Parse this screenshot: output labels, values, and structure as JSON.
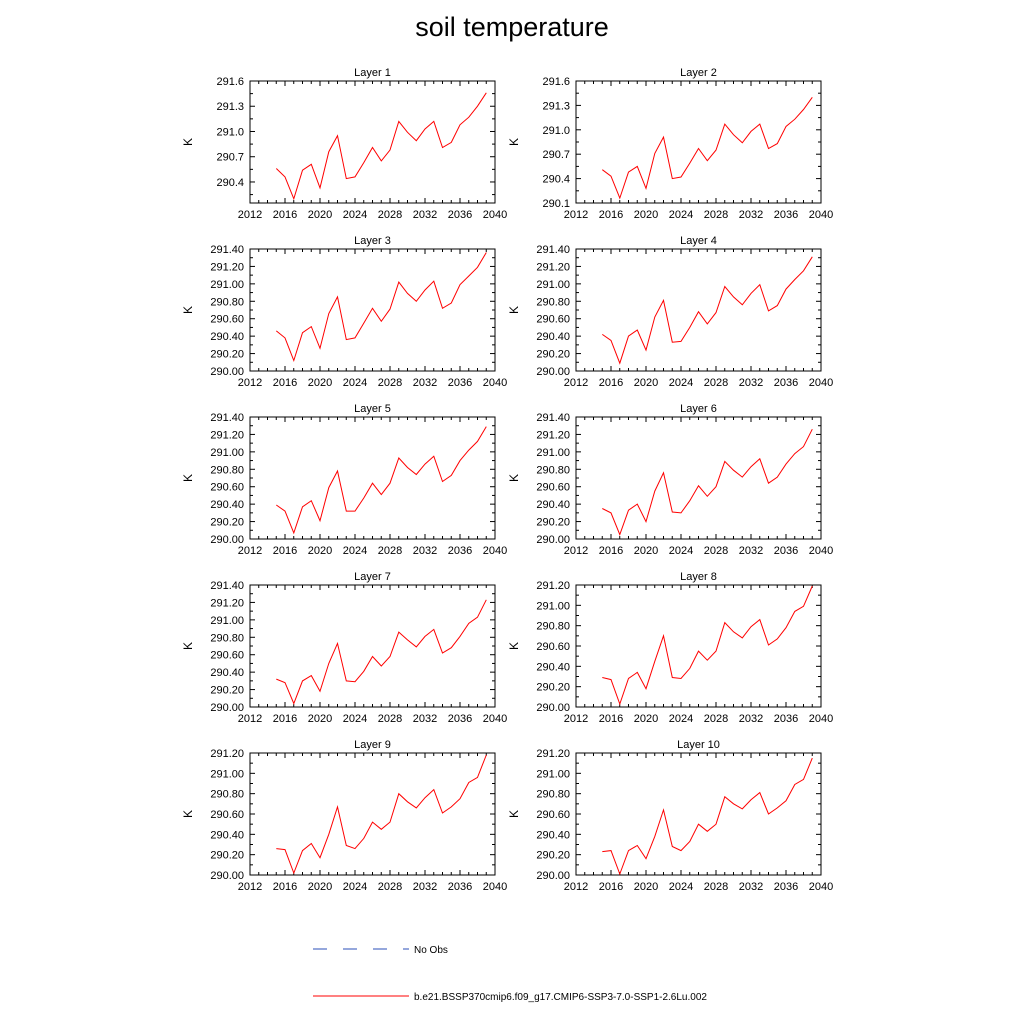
{
  "title": "soil temperature",
  "colors": {
    "model": "#ff0000",
    "obs": "#2b4fb8",
    "axis": "#000000"
  },
  "legend": {
    "obs_label": "No Obs",
    "model_label": "b.e21.BSSP370cmip6.f09_g17.CMIP6-SSP3-7.0-SSP1-2.6Lu.002"
  },
  "chart_data": [
    {
      "type": "line",
      "title": "Layer 1",
      "ylabel": "K",
      "xlim": [
        2012,
        2040
      ],
      "ylim": [
        290.15,
        291.6
      ],
      "xticks": [
        "2012",
        "2016",
        "2020",
        "2024",
        "2028",
        "2032",
        "2036",
        "2040"
      ],
      "yticks": [
        "290.4",
        "290.7",
        "291.0",
        "291.3",
        "291.6"
      ],
      "x": [
        2015,
        2016,
        2017,
        2018,
        2019,
        2020,
        2021,
        2022,
        2023,
        2024,
        2025,
        2026,
        2027,
        2028,
        2029,
        2030,
        2031,
        2032,
        2033,
        2034,
        2035,
        2036,
        2037,
        2038,
        2039
      ],
      "series": [
        {
          "name": "b.e21.BSSP370cmip6.f09_g17.CMIP6-SSP3-7.0-SSP1-2.6Lu.002",
          "values": [
            290.56,
            290.46,
            290.2,
            290.54,
            290.61,
            290.33,
            290.76,
            290.95,
            290.44,
            290.46,
            290.63,
            290.81,
            290.65,
            290.78,
            291.12,
            290.99,
            290.89,
            291.03,
            291.12,
            290.81,
            290.87,
            291.08,
            291.17,
            291.3,
            291.46
          ]
        }
      ]
    },
    {
      "type": "line",
      "title": "Layer 2",
      "ylabel": "K",
      "xlim": [
        2012,
        2040
      ],
      "ylim": [
        290.1,
        291.6
      ],
      "xticks": [
        "2012",
        "2016",
        "2020",
        "2024",
        "2028",
        "2032",
        "2036",
        "2040"
      ],
      "yticks": [
        "290.1",
        "290.4",
        "290.7",
        "291.0",
        "291.3",
        "291.6"
      ],
      "x": [
        2015,
        2016,
        2017,
        2018,
        2019,
        2020,
        2021,
        2022,
        2023,
        2024,
        2025,
        2026,
        2027,
        2028,
        2029,
        2030,
        2031,
        2032,
        2033,
        2034,
        2035,
        2036,
        2037,
        2038,
        2039
      ],
      "series": [
        {
          "name": "b.e21.BSSP370cmip6.f09_g17.CMIP6-SSP3-7.0-SSP1-2.6Lu.002",
          "values": [
            290.51,
            290.43,
            290.16,
            290.48,
            290.55,
            290.28,
            290.71,
            290.91,
            290.4,
            290.42,
            290.59,
            290.77,
            290.62,
            290.75,
            291.07,
            290.94,
            290.84,
            290.98,
            291.07,
            290.77,
            290.83,
            291.04,
            291.13,
            291.25,
            291.4
          ]
        }
      ]
    },
    {
      "type": "line",
      "title": "Layer 3",
      "ylabel": "K",
      "xlim": [
        2012,
        2040
      ],
      "ylim": [
        290.0,
        291.4
      ],
      "xticks": [
        "2012",
        "2016",
        "2020",
        "2024",
        "2028",
        "2032",
        "2036",
        "2040"
      ],
      "yticks": [
        "290.00",
        "290.20",
        "290.40",
        "290.60",
        "290.80",
        "291.00",
        "291.20",
        "291.40"
      ],
      "x": [
        2015,
        2016,
        2017,
        2018,
        2019,
        2020,
        2021,
        2022,
        2023,
        2024,
        2025,
        2026,
        2027,
        2028,
        2029,
        2030,
        2031,
        2032,
        2033,
        2034,
        2035,
        2036,
        2037,
        2038,
        2039
      ],
      "series": [
        {
          "name": "b.e21.BSSP370cmip6.f09_g17.CMIP6-SSP3-7.0-SSP1-2.6Lu.002",
          "values": [
            290.46,
            290.38,
            290.12,
            290.44,
            290.51,
            290.26,
            290.66,
            290.85,
            290.36,
            290.38,
            290.55,
            290.72,
            290.57,
            290.71,
            291.02,
            290.89,
            290.8,
            290.93,
            291.03,
            290.72,
            290.78,
            290.99,
            291.09,
            291.19,
            291.36
          ]
        }
      ]
    },
    {
      "type": "line",
      "title": "Layer 4",
      "ylabel": "K",
      "xlim": [
        2012,
        2040
      ],
      "ylim": [
        290.0,
        291.4
      ],
      "xticks": [
        "2012",
        "2016",
        "2020",
        "2024",
        "2028",
        "2032",
        "2036",
        "2040"
      ],
      "yticks": [
        "290.00",
        "290.20",
        "290.40",
        "290.60",
        "290.80",
        "291.00",
        "291.20",
        "291.40"
      ],
      "x": [
        2015,
        2016,
        2017,
        2018,
        2019,
        2020,
        2021,
        2022,
        2023,
        2024,
        2025,
        2026,
        2027,
        2028,
        2029,
        2030,
        2031,
        2032,
        2033,
        2034,
        2035,
        2036,
        2037,
        2038,
        2039
      ],
      "series": [
        {
          "name": "b.e21.BSSP370cmip6.f09_g17.CMIP6-SSP3-7.0-SSP1-2.6Lu.002",
          "values": [
            290.42,
            290.35,
            290.09,
            290.4,
            290.47,
            290.24,
            290.62,
            290.81,
            290.33,
            290.34,
            290.5,
            290.68,
            290.54,
            290.67,
            290.97,
            290.85,
            290.76,
            290.89,
            290.99,
            290.69,
            290.75,
            290.94,
            291.05,
            291.15,
            291.31
          ]
        }
      ]
    },
    {
      "type": "line",
      "title": "Layer 5",
      "ylabel": "K",
      "xlim": [
        2012,
        2040
      ],
      "ylim": [
        290.0,
        291.4
      ],
      "xticks": [
        "2012",
        "2016",
        "2020",
        "2024",
        "2028",
        "2032",
        "2036",
        "2040"
      ],
      "yticks": [
        "290.00",
        "290.20",
        "290.40",
        "290.60",
        "290.80",
        "291.00",
        "291.20",
        "291.40"
      ],
      "x": [
        2015,
        2016,
        2017,
        2018,
        2019,
        2020,
        2021,
        2022,
        2023,
        2024,
        2025,
        2026,
        2027,
        2028,
        2029,
        2030,
        2031,
        2032,
        2033,
        2034,
        2035,
        2036,
        2037,
        2038,
        2039
      ],
      "series": [
        {
          "name": "b.e21.BSSP370cmip6.f09_g17.CMIP6-SSP3-7.0-SSP1-2.6Lu.002",
          "values": [
            290.39,
            290.32,
            290.07,
            290.37,
            290.44,
            290.21,
            290.59,
            290.78,
            290.32,
            290.32,
            290.47,
            290.64,
            290.51,
            290.64,
            290.93,
            290.82,
            290.74,
            290.86,
            290.95,
            290.66,
            290.73,
            290.9,
            291.02,
            291.12,
            291.29
          ]
        }
      ]
    },
    {
      "type": "line",
      "title": "Layer 6",
      "ylabel": "K",
      "xlim": [
        2012,
        2040
      ],
      "ylim": [
        290.0,
        291.4
      ],
      "xticks": [
        "2012",
        "2016",
        "2020",
        "2024",
        "2028",
        "2032",
        "2036",
        "2040"
      ],
      "yticks": [
        "290.00",
        "290.20",
        "290.40",
        "290.60",
        "290.80",
        "291.00",
        "291.20",
        "291.40"
      ],
      "x": [
        2015,
        2016,
        2017,
        2018,
        2019,
        2020,
        2021,
        2022,
        2023,
        2024,
        2025,
        2026,
        2027,
        2028,
        2029,
        2030,
        2031,
        2032,
        2033,
        2034,
        2035,
        2036,
        2037,
        2038,
        2039
      ],
      "series": [
        {
          "name": "b.e21.BSSP370cmip6.f09_g17.CMIP6-SSP3-7.0-SSP1-2.6Lu.002",
          "values": [
            290.35,
            290.3,
            290.05,
            290.33,
            290.4,
            290.2,
            290.55,
            290.76,
            290.31,
            290.3,
            290.44,
            290.61,
            290.49,
            290.6,
            290.89,
            290.79,
            290.71,
            290.83,
            290.92,
            290.64,
            290.71,
            290.86,
            290.98,
            291.06,
            291.26
          ]
        }
      ]
    },
    {
      "type": "line",
      "title": "Layer 7",
      "ylabel": "K",
      "xlim": [
        2012,
        2040
      ],
      "ylim": [
        290.0,
        291.4
      ],
      "xticks": [
        "2012",
        "2016",
        "2020",
        "2024",
        "2028",
        "2032",
        "2036",
        "2040"
      ],
      "yticks": [
        "290.00",
        "290.20",
        "290.40",
        "290.60",
        "290.80",
        "291.00",
        "291.20",
        "291.40"
      ],
      "x": [
        2015,
        2016,
        2017,
        2018,
        2019,
        2020,
        2021,
        2022,
        2023,
        2024,
        2025,
        2026,
        2027,
        2028,
        2029,
        2030,
        2031,
        2032,
        2033,
        2034,
        2035,
        2036,
        2037,
        2038,
        2039
      ],
      "series": [
        {
          "name": "b.e21.BSSP370cmip6.f09_g17.CMIP6-SSP3-7.0-SSP1-2.6Lu.002",
          "values": [
            290.32,
            290.28,
            290.04,
            290.3,
            290.36,
            290.18,
            290.5,
            290.73,
            290.3,
            290.29,
            290.41,
            290.58,
            290.47,
            290.58,
            290.86,
            290.77,
            290.69,
            290.81,
            290.89,
            290.62,
            290.68,
            290.81,
            290.96,
            291.03,
            291.23
          ]
        }
      ]
    },
    {
      "type": "line",
      "title": "Layer 8",
      "ylabel": "K",
      "xlim": [
        2012,
        2040
      ],
      "ylim": [
        290.0,
        291.2
      ],
      "xticks": [
        "2012",
        "2016",
        "2020",
        "2024",
        "2028",
        "2032",
        "2036",
        "2040"
      ],
      "yticks": [
        "290.00",
        "290.20",
        "290.40",
        "290.60",
        "290.80",
        "291.00",
        "291.20"
      ],
      "x": [
        2015,
        2016,
        2017,
        2018,
        2019,
        2020,
        2021,
        2022,
        2023,
        2024,
        2025,
        2026,
        2027,
        2028,
        2029,
        2030,
        2031,
        2032,
        2033,
        2034,
        2035,
        2036,
        2037,
        2038,
        2039
      ],
      "series": [
        {
          "name": "b.e21.BSSP370cmip6.f09_g17.CMIP6-SSP3-7.0-SSP1-2.6Lu.002",
          "values": [
            290.29,
            290.27,
            290.03,
            290.28,
            290.34,
            290.18,
            290.45,
            290.7,
            290.29,
            290.28,
            290.38,
            290.55,
            290.46,
            290.55,
            290.83,
            290.74,
            290.68,
            290.79,
            290.86,
            290.61,
            290.67,
            290.78,
            290.94,
            290.99,
            291.19
          ]
        }
      ]
    },
    {
      "type": "line",
      "title": "Layer 9",
      "ylabel": "K",
      "xlim": [
        2012,
        2040
      ],
      "ylim": [
        290.0,
        291.2
      ],
      "xticks": [
        "2012",
        "2016",
        "2020",
        "2024",
        "2028",
        "2032",
        "2036",
        "2040"
      ],
      "yticks": [
        "290.00",
        "290.20",
        "290.40",
        "290.60",
        "290.80",
        "291.00",
        "291.20"
      ],
      "x": [
        2015,
        2016,
        2017,
        2018,
        2019,
        2020,
        2021,
        2022,
        2023,
        2024,
        2025,
        2026,
        2027,
        2028,
        2029,
        2030,
        2031,
        2032,
        2033,
        2034,
        2035,
        2036,
        2037,
        2038,
        2039
      ],
      "series": [
        {
          "name": "b.e21.BSSP370cmip6.f09_g17.CMIP6-SSP3-7.0-SSP1-2.6Lu.002",
          "values": [
            290.26,
            290.25,
            290.02,
            290.24,
            290.31,
            290.17,
            290.4,
            290.67,
            290.29,
            290.26,
            290.36,
            290.52,
            290.45,
            290.52,
            290.8,
            290.72,
            290.66,
            290.76,
            290.84,
            290.61,
            290.67,
            290.75,
            290.91,
            290.96,
            291.18
          ]
        }
      ]
    },
    {
      "type": "line",
      "title": "Layer 10",
      "ylabel": "K",
      "xlim": [
        2012,
        2040
      ],
      "ylim": [
        290.0,
        291.2
      ],
      "xticks": [
        "2012",
        "2016",
        "2020",
        "2024",
        "2028",
        "2032",
        "2036",
        "2040"
      ],
      "yticks": [
        "290.00",
        "290.20",
        "290.40",
        "290.60",
        "290.80",
        "291.00",
        "291.20"
      ],
      "x": [
        2015,
        2016,
        2017,
        2018,
        2019,
        2020,
        2021,
        2022,
        2023,
        2024,
        2025,
        2026,
        2027,
        2028,
        2029,
        2030,
        2031,
        2032,
        2033,
        2034,
        2035,
        2036,
        2037,
        2038,
        2039
      ],
      "series": [
        {
          "name": "b.e21.BSSP370cmip6.f09_g17.CMIP6-SSP3-7.0-SSP1-2.6Lu.002",
          "values": [
            290.23,
            290.24,
            290.01,
            290.24,
            290.29,
            290.16,
            290.38,
            290.64,
            290.28,
            290.24,
            290.33,
            290.5,
            290.43,
            290.5,
            290.77,
            290.7,
            290.65,
            290.74,
            290.81,
            290.6,
            290.66,
            290.73,
            290.89,
            290.94,
            291.15
          ]
        }
      ]
    }
  ]
}
